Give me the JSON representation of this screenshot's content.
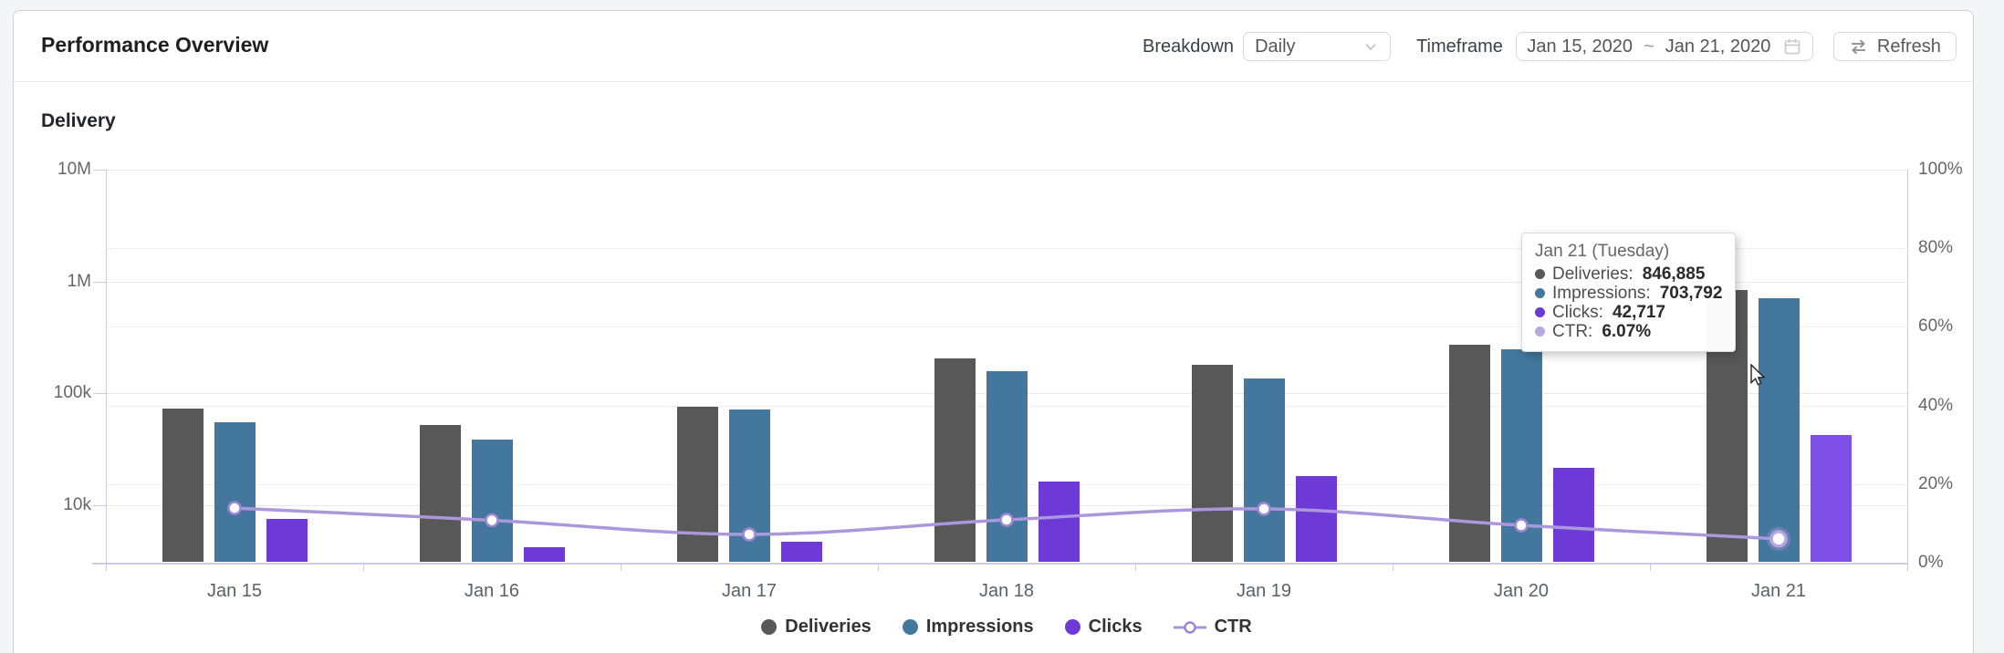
{
  "header": {
    "title": "Performance Overview",
    "breakdown_label": "Breakdown",
    "breakdown_value": "Daily",
    "timeframe_label": "Timeframe",
    "date_start": "Jan 15, 2020",
    "date_separator": "~",
    "date_end": "Jan 21, 2020",
    "refresh_label": "Refresh"
  },
  "section": {
    "title": "Delivery"
  },
  "colors": {
    "deliveries": "#585858",
    "impressions": "#44779d",
    "clicks": "#6e3ad7",
    "clicks_highlight": "#7e50e7",
    "ctr_line": "#ab98dc",
    "ctr_marker_stroke": "#9e88d6",
    "ctr_tooltip_dot": "#b9a8e0",
    "grid_major": "#e8e8e8",
    "grid_minor": "#f1f1f1",
    "axis_line": "#c9cce4"
  },
  "chart_data": {
    "type": "combo-bar-line",
    "categories": [
      "Jan 15",
      "Jan 16",
      "Jan 17",
      "Jan 18",
      "Jan 19",
      "Jan 20",
      "Jan 21"
    ],
    "series": [
      {
        "name": "Deliveries",
        "type": "bar",
        "axis": "left",
        "values": [
          73000,
          52000,
          76000,
          206000,
          180000,
          272000,
          846885
        ]
      },
      {
        "name": "Impressions",
        "type": "bar",
        "axis": "left",
        "values": [
          55000,
          39000,
          72000,
          158000,
          136000,
          248000,
          703792
        ]
      },
      {
        "name": "Clicks",
        "type": "bar",
        "axis": "left",
        "values": [
          7600,
          4200,
          4700,
          16300,
          18300,
          21600,
          42717
        ]
      },
      {
        "name": "CTR",
        "type": "line",
        "axis": "right",
        "values": [
          13.9,
          10.8,
          7.2,
          10.9,
          13.7,
          9.5,
          6.07
        ]
      }
    ],
    "left_axis": {
      "scale": "log",
      "tick_labels": [
        "10M",
        "1M",
        "100k",
        "10k"
      ],
      "tick_values": [
        10000000,
        1000000,
        100000,
        10000
      ],
      "top_value": 10000000
    },
    "right_axis": {
      "tick_labels": [
        "100%",
        "80%",
        "60%",
        "40%",
        "20%",
        "0%"
      ],
      "tick_values": [
        100,
        80,
        60,
        40,
        20,
        0
      ]
    },
    "legend": [
      "Deliveries",
      "Impressions",
      "Clicks",
      "CTR"
    ],
    "highlighted_category": "Jan 21"
  },
  "tooltip": {
    "title": "Jan 21 (Tuesday)",
    "rows": [
      {
        "label": "Deliveries",
        "value": "846,885"
      },
      {
        "label": "Impressions",
        "value": "703,792"
      },
      {
        "label": "Clicks",
        "value": "42,717"
      },
      {
        "label": "CTR",
        "value": "6.07%"
      }
    ]
  }
}
